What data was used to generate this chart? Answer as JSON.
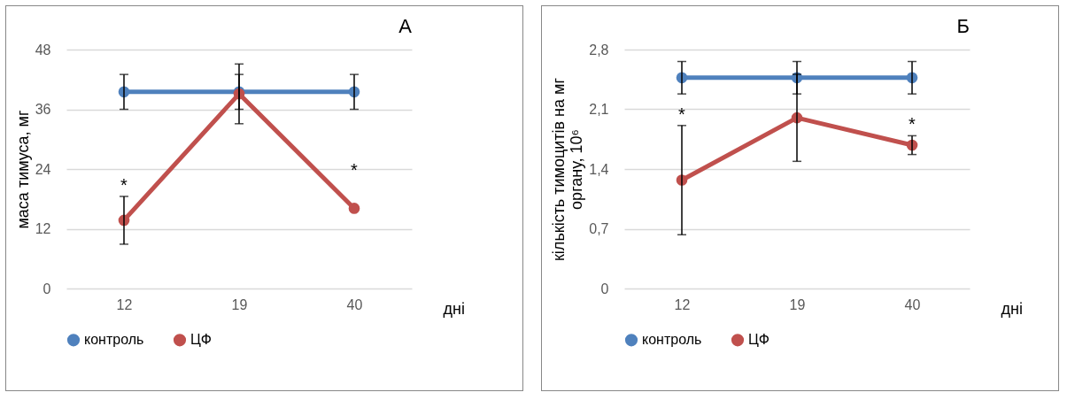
{
  "chart_data": [
    {
      "type": "line",
      "title": "А",
      "ylabel": "маса тимуса, мг",
      "xlabel": "дні",
      "categories": [
        "12",
        "19",
        "40"
      ],
      "ylim": [
        0,
        48
      ],
      "yticks": [
        0,
        12,
        24,
        36,
        48
      ],
      "grid": "y",
      "legend": "bottom",
      "marker": "circle",
      "series": [
        {
          "name": "контроль",
          "color": "#4f81bd",
          "values": [
            39.5,
            39.5,
            39.5
          ],
          "errors": [
            3.5,
            3.5,
            3.5
          ]
        },
        {
          "name": "ЦФ",
          "color": "#c0504d",
          "values": [
            13.7,
            39.1,
            16.1
          ],
          "errors": [
            4.8,
            6,
            null
          ]
        }
      ],
      "annotations": [
        {
          "text": "*",
          "x": "12",
          "y": 13.7
        },
        {
          "text": "*",
          "x": "40",
          "y": 16.1
        }
      ]
    },
    {
      "type": "line",
      "title": "Б",
      "ylabel": "кількість тимоцитів на мг органу, 10⁶",
      "xlabel": "дні",
      "categories": [
        "12",
        "19",
        "40"
      ],
      "ylim": [
        0,
        2.8
      ],
      "yticks": [
        0,
        {
          "value": 0.7,
          "label": "0,7"
        },
        {
          "value": 1.4,
          "label": "1,4"
        },
        {
          "value": 2.1,
          "label": "2,1"
        },
        {
          "value": 2.8,
          "label": "2,8"
        }
      ],
      "grid": "y",
      "legend": "bottom",
      "marker": "circle",
      "series": [
        {
          "name": "контроль",
          "color": "#4f81bd",
          "values": [
            2.47,
            2.47,
            2.47
          ],
          "errors": [
            0.19,
            0.19,
            0.19
          ]
        },
        {
          "name": "ЦФ",
          "color": "#c0504d",
          "values": [
            1.27,
            2.0,
            1.68
          ],
          "errors": [
            0.64,
            0.51,
            0.11
          ]
        }
      ],
      "annotations": [
        {
          "text": "*",
          "x": "12",
          "y": 1.91
        },
        {
          "text": "*",
          "x": "40",
          "y": 1.68
        }
      ]
    }
  ]
}
